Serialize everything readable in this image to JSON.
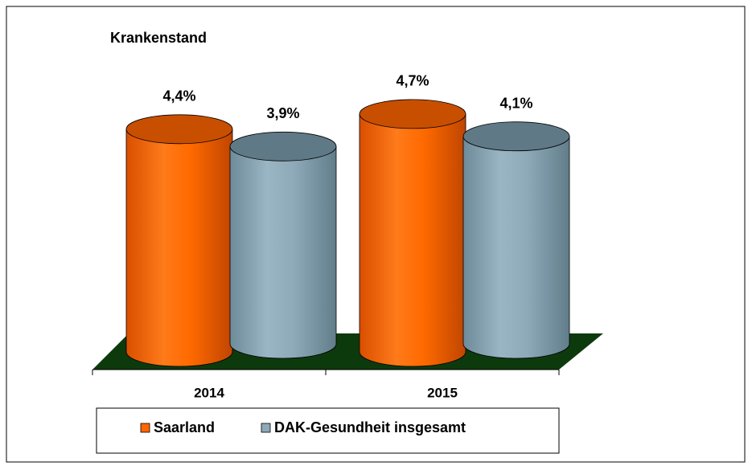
{
  "chart_data": {
    "type": "bar",
    "title": "Krankenstand",
    "categories": [
      "2014",
      "2015"
    ],
    "series": [
      {
        "name": "Saarland",
        "color": "#ff6600",
        "values": [
          4.4,
          4.7
        ],
        "value_labels": [
          "4,4%",
          "4,7%"
        ]
      },
      {
        "name": "DAK-Gesundheit insgesamt",
        "color": "#8ea9b8",
        "values": [
          3.9,
          4.1
        ],
        "value_labels": [
          "3,9%",
          "4,1%"
        ]
      }
    ]
  }
}
